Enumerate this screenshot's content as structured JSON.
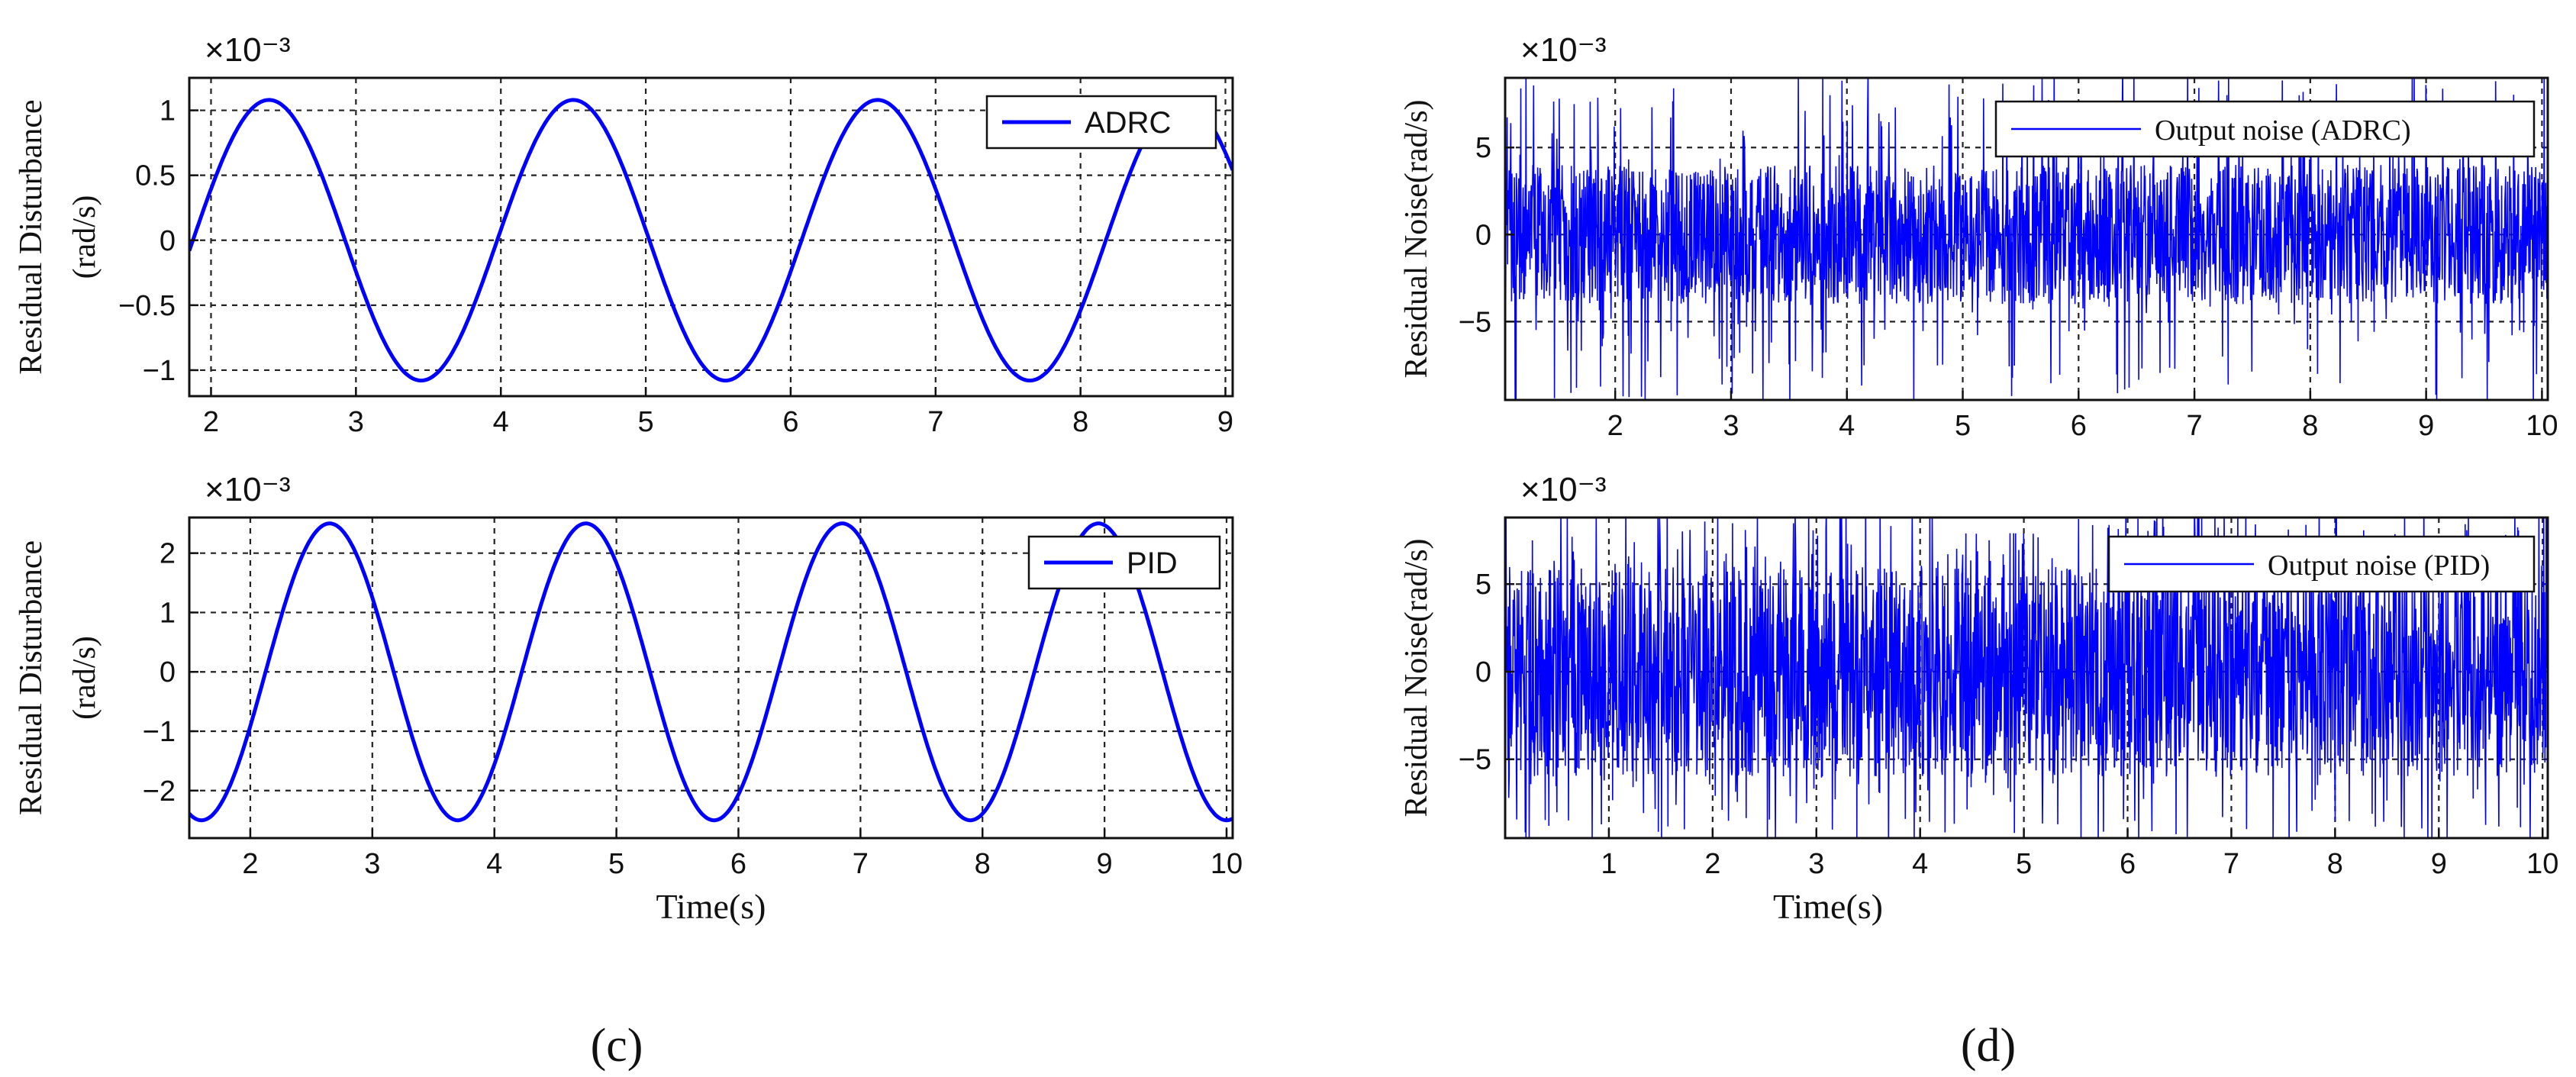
{
  "panel_labels": {
    "c": "(c)",
    "d": "(d)"
  },
  "chart_data": [
    {
      "type": "line",
      "panel": "c-top",
      "multiplier_label": "×10⁻³",
      "ylabel_lines": [
        "Residual Disturbance",
        "(rad/s)"
      ],
      "xlabel": "",
      "xlim": [
        1.85,
        9.05
      ],
      "ylim": [
        -1.2,
        1.25
      ],
      "xticks": [
        2,
        3,
        4,
        5,
        6,
        7,
        8,
        9
      ],
      "yticks": [
        -1,
        -0.5,
        0,
        0.5,
        1
      ],
      "ytick_labels": [
        "−1",
        "−0.5",
        "0",
        "0.5",
        "1"
      ],
      "grid": true,
      "legend_position": "top-right",
      "color": "#0000ff",
      "series": [
        {
          "name": "ADRC",
          "shape": "sine",
          "amplitude": 1.08,
          "period": 2.1,
          "peak_at": 2.4
        }
      ]
    },
    {
      "type": "line",
      "panel": "c-bottom",
      "multiplier_label": "×10⁻³",
      "ylabel_lines": [
        "Residual Disturbance",
        "(rad/s)"
      ],
      "xlabel": "Time(s)",
      "xlim": [
        1.5,
        10.05
      ],
      "ylim": [
        -2.8,
        2.6
      ],
      "xticks": [
        2,
        3,
        4,
        5,
        6,
        7,
        8,
        9,
        10
      ],
      "yticks": [
        -2,
        -1,
        0,
        1,
        2
      ],
      "ytick_labels": [
        "−2",
        "−1",
        "0",
        "1",
        "2"
      ],
      "grid": true,
      "legend_position": "top-right",
      "color": "#0000ff",
      "series": [
        {
          "name": "PID",
          "shape": "sine",
          "amplitude": 2.5,
          "period": 2.1,
          "peak_at": 2.65
        }
      ]
    },
    {
      "type": "line",
      "panel": "d-top",
      "multiplier_label": "×10⁻³",
      "ylabel_lines": [
        "Residual Noise(rad/s)"
      ],
      "xlabel": "",
      "xlim": [
        1.05,
        10.05
      ],
      "ylim": [
        -9.5,
        9
      ],
      "xticks": [
        2,
        3,
        4,
        5,
        6,
        7,
        8,
        9,
        10
      ],
      "yticks": [
        -5,
        0,
        5
      ],
      "ytick_labels": [
        "−5",
        "0",
        "5"
      ],
      "grid": true,
      "legend_position": "top-right",
      "color": "#0000ff",
      "series": [
        {
          "name": "Output noise (ADRC)",
          "shape": "noise",
          "typical_band": 4,
          "spike_max": 9
        }
      ]
    },
    {
      "type": "line",
      "panel": "d-bottom",
      "multiplier_label": "×10⁻³",
      "ylabel_lines": [
        "Residual Noise(rad/s)"
      ],
      "xlabel": "Time(s)",
      "xlim": [
        0,
        10.05
      ],
      "ylim": [
        -9.5,
        8.8
      ],
      "xticks": [
        1,
        2,
        3,
        4,
        5,
        6,
        7,
        8,
        9,
        10
      ],
      "yticks": [
        -5,
        0,
        5
      ],
      "ytick_labels": [
        "−5",
        "0",
        "5"
      ],
      "grid": true,
      "legend_position": "top-right",
      "color": "#0000ff",
      "series": [
        {
          "name": "Output noise (PID)",
          "shape": "noise",
          "typical_band": 6,
          "spike_max": 9
        }
      ]
    }
  ]
}
